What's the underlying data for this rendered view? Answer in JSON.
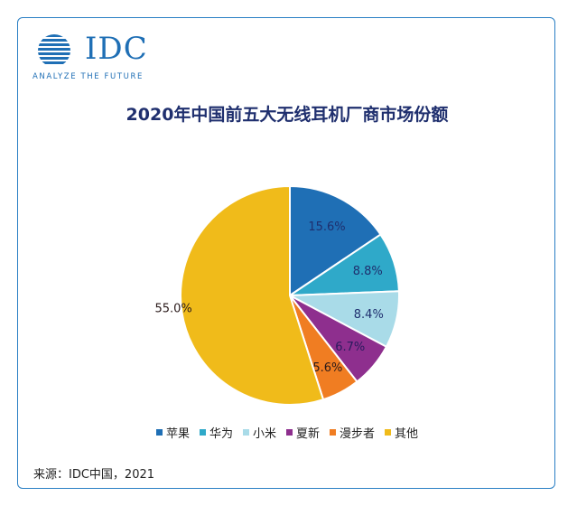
{
  "logo": {
    "wordmark": "IDC",
    "tagline": "ANALYZE THE FUTURE"
  },
  "chart_data": {
    "type": "pie",
    "title": "2020年中国前五大无线耳机厂商市场份额",
    "slices": [
      {
        "label": "苹果",
        "value": 15.6,
        "display": "15.6%",
        "color": "#1f6fb5",
        "label_color": "#1f2f6e"
      },
      {
        "label": "华为",
        "value": 8.8,
        "display": "8.8%",
        "color": "#2fa9c9",
        "label_color": "#1f2f6e"
      },
      {
        "label": "小米",
        "value": 8.4,
        "display": "8.4%",
        "color": "#a9dbe8",
        "label_color": "#1f2f6e"
      },
      {
        "label": "夏新",
        "value": 6.7,
        "display": "6.7%",
        "color": "#8e2f8e",
        "label_color": "#2a1a5e"
      },
      {
        "label": "漫步者",
        "value": 5.6,
        "display": "5.6%",
        "color": "#f07d22",
        "label_color": "#2a1a1a"
      },
      {
        "label": "其他",
        "value": 55.0,
        "display": "55.0%",
        "color": "#f0bb1a",
        "label_color": "#2a1a1a"
      }
    ],
    "start": "12 o'clock",
    "direction": "clockwise",
    "legend_position": "bottom"
  },
  "source": "来源：IDC中国，2021"
}
